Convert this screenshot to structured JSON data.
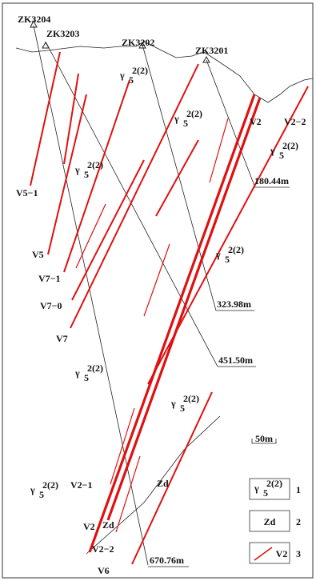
{
  "boreholes": [
    {
      "name": "ZK3204"
    },
    {
      "name": "ZK3203"
    },
    {
      "name": "ZK3202"
    },
    {
      "name": "ZK3201"
    }
  ],
  "depths": [
    "180.44m",
    "323.98m",
    "451.50m",
    "670.76m"
  ],
  "veins": [
    "V5−1",
    "V5",
    "V7−1",
    "V7−0",
    "V7",
    "V2",
    "V2−2",
    "V2−1",
    "V2",
    "V2−2",
    "V6"
  ],
  "rock_labels": [
    {
      "symbol": "γ",
      "superscript": "2(2)",
      "subscript": "5"
    },
    {
      "symbol": "γ",
      "superscript": "2(2)",
      "subscript": "5"
    },
    {
      "symbol": "γ",
      "superscript": "2(2)",
      "subscript": "5"
    },
    {
      "symbol": "γ",
      "superscript": "2(2)",
      "subscript": "5"
    },
    {
      "symbol": "γ",
      "superscript": "2(2)",
      "subscript": "5"
    },
    {
      "symbol": "γ",
      "superscript": "2(2)",
      "subscript": "5"
    },
    {
      "symbol": "γ",
      "superscript": "2(2)",
      "subscript": "5"
    },
    {
      "symbol": "γ",
      "superscript": "2(2)",
      "subscript": "5"
    }
  ],
  "zd_labels": [
    "Zd",
    "Zd"
  ],
  "scale": "50m",
  "legend": [
    {
      "symbol": "γ",
      "superscript": "2(2)",
      "subscript": "5",
      "number": "1"
    },
    {
      "text": "Zd",
      "number": "2"
    },
    {
      "text": "V2",
      "number": "3"
    }
  ]
}
